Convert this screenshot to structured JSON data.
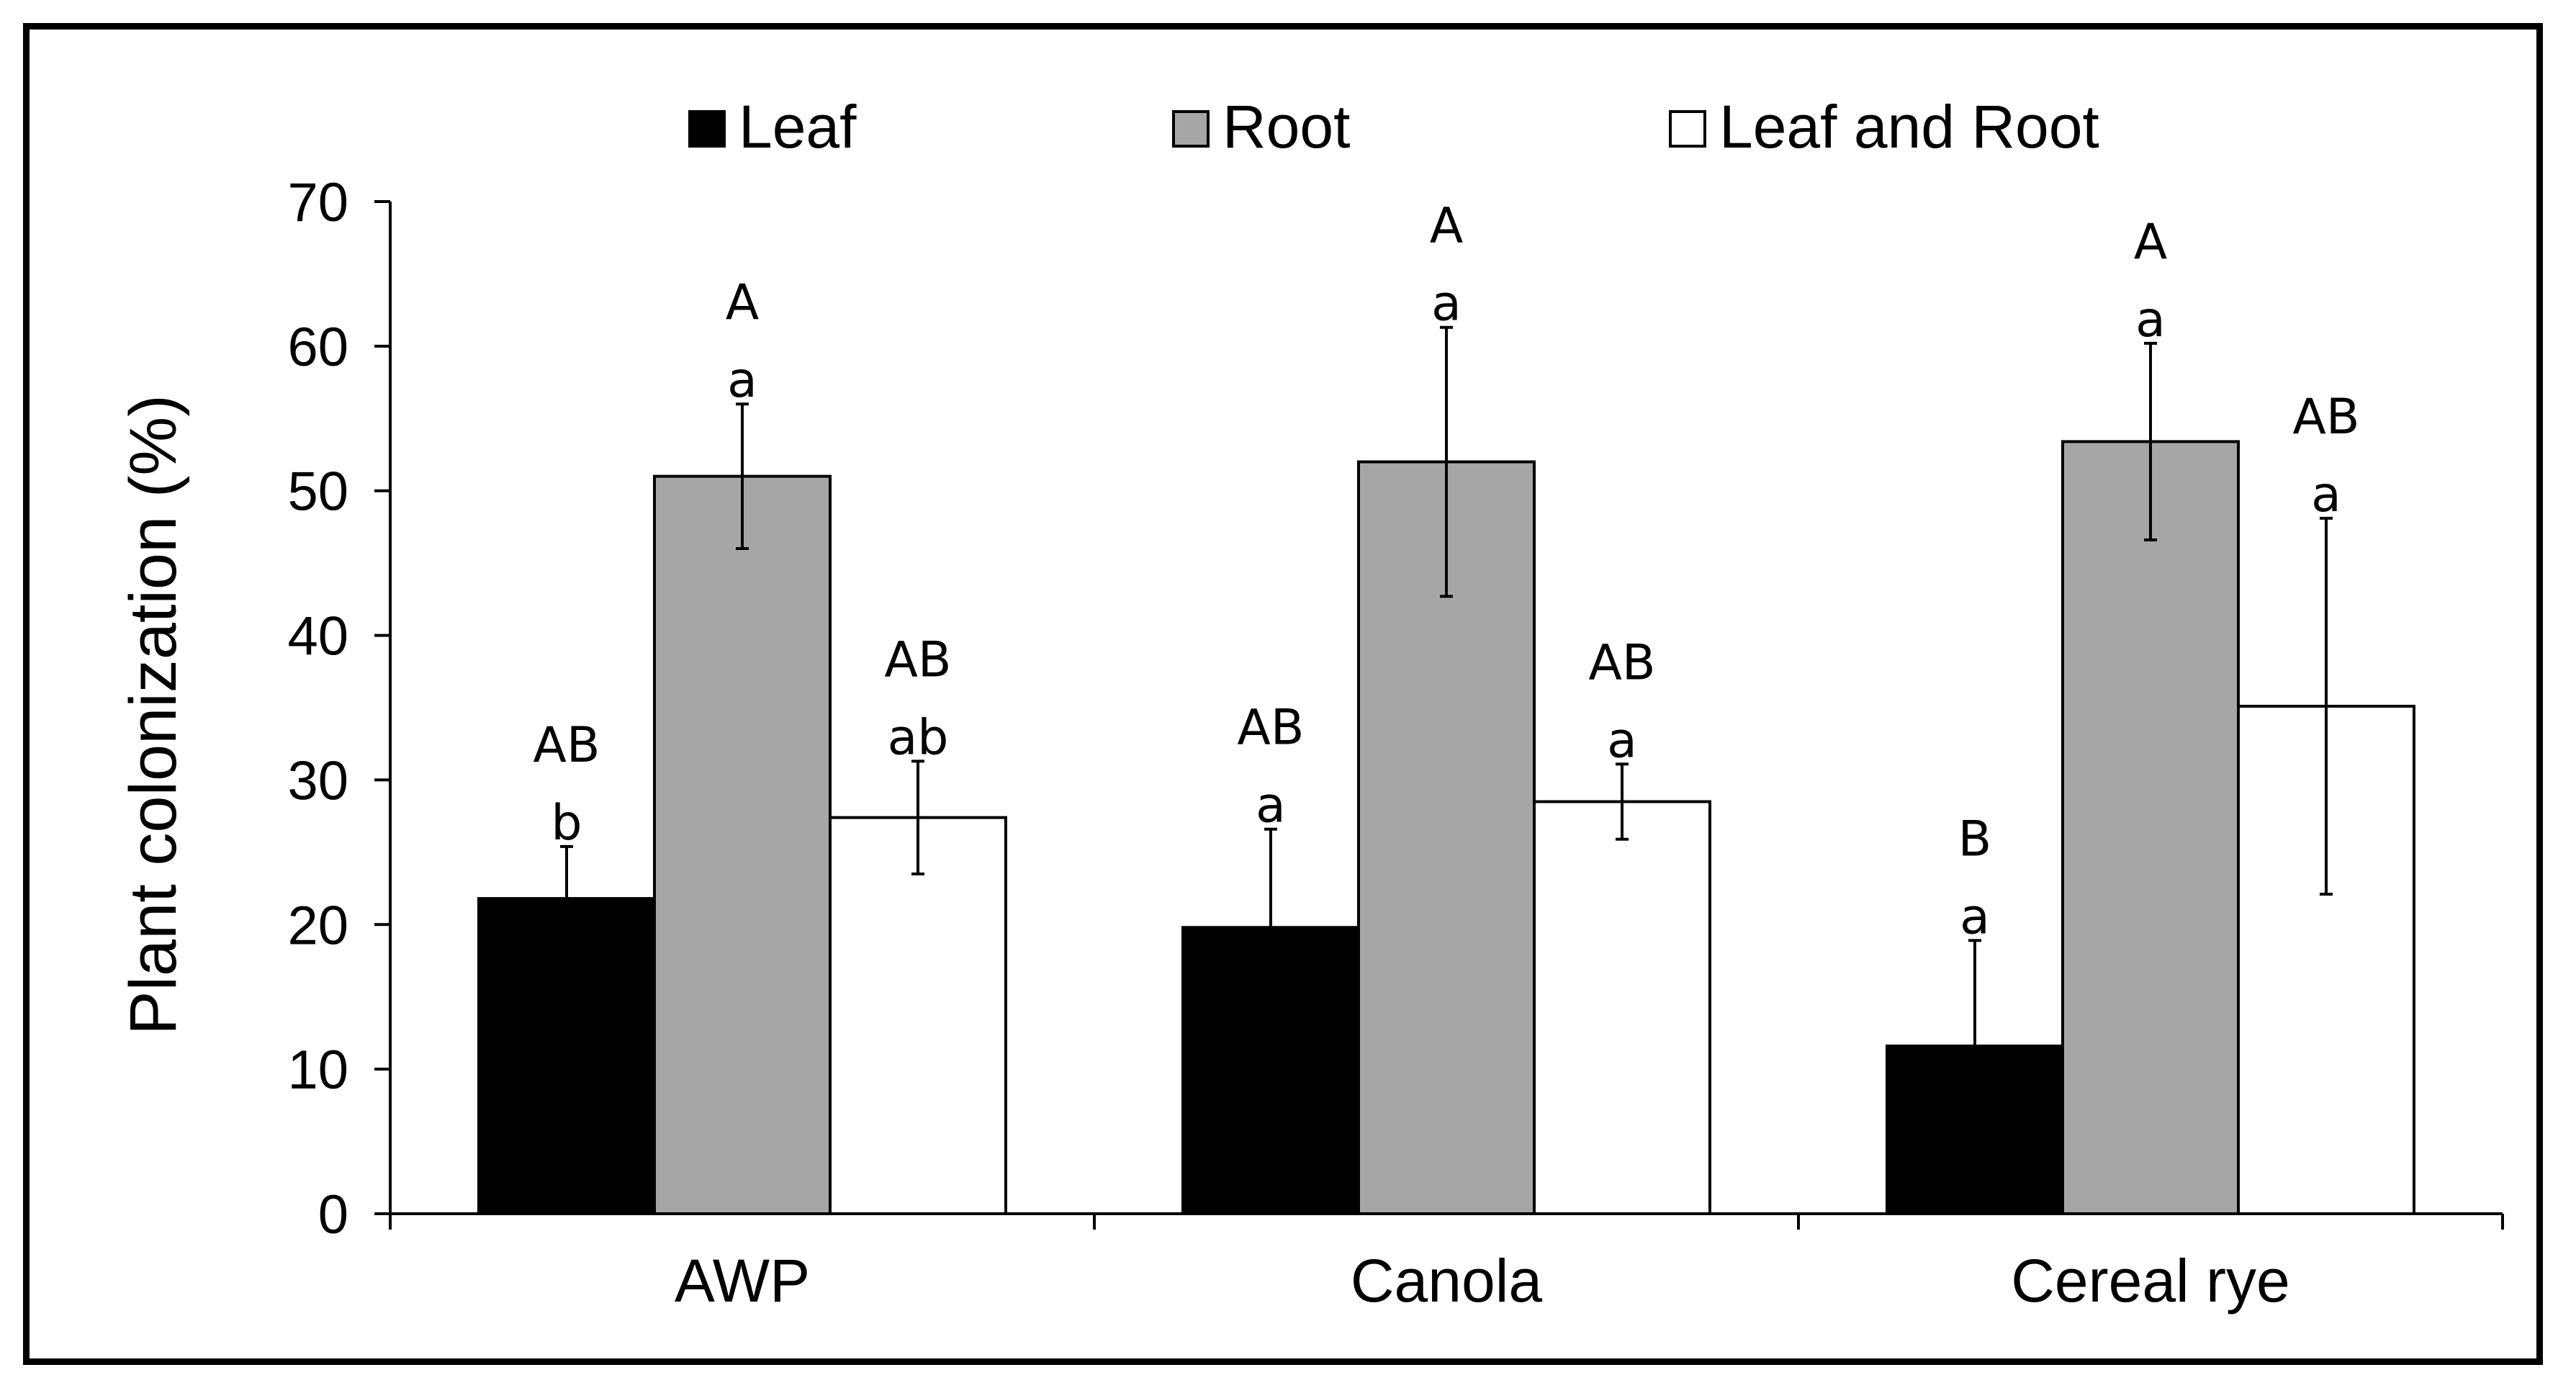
{
  "chart_data": {
    "type": "bar",
    "title": "",
    "xlabel": "",
    "ylabel": "Plant colonization (%)",
    "ylim": [
      0,
      70
    ],
    "yticks": [
      0,
      10,
      20,
      30,
      40,
      50,
      60,
      70
    ],
    "yticks_labels": [
      "0",
      "10",
      "20",
      "30",
      "40",
      "50",
      "60",
      "70"
    ],
    "grid": false,
    "legend_position": "top",
    "categories": [
      "AWP",
      "Canola",
      "Cereal rye"
    ],
    "series": [
      {
        "name": "Leaf",
        "color": "#000000",
        "values": [
          21.8,
          19.8,
          11.6
        ],
        "errors": [
          3.6,
          6.8,
          7.3
        ],
        "sig_upper": [
          "AB",
          "AB",
          "B"
        ],
        "sig_lower": [
          "b",
          "a",
          "a"
        ]
      },
      {
        "name": "Root",
        "color": "#a6a6a6",
        "values": [
          51.0,
          52.0,
          53.4
        ],
        "errors": [
          5.0,
          9.3,
          6.8
        ],
        "sig_upper": [
          "A",
          "A",
          "A"
        ],
        "sig_lower": [
          "a",
          "a",
          "a"
        ]
      },
      {
        "name": "Leaf and Root",
        "color": "#ffffff",
        "values": [
          27.4,
          28.5,
          35.1
        ],
        "errors": [
          3.9,
          2.6,
          13.0
        ],
        "sig_upper": [
          "AB",
          "AB",
          "AB"
        ],
        "sig_lower": [
          "ab",
          "a",
          "a"
        ]
      }
    ]
  }
}
